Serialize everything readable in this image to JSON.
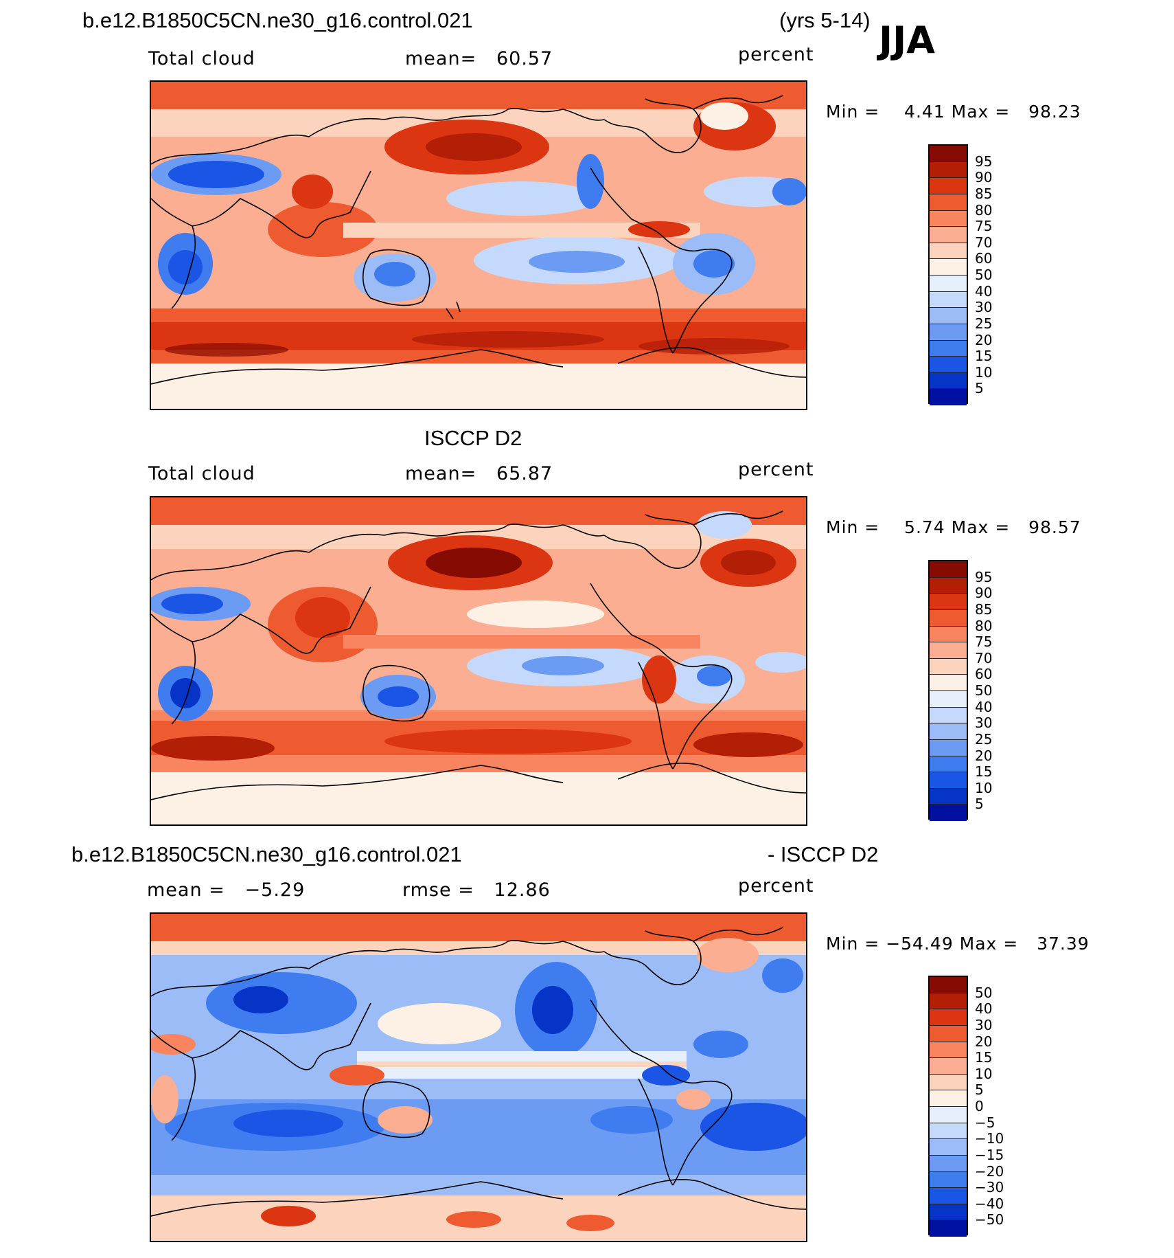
{
  "header": {
    "case_name": "b.e12.B1850C5CN.ne30_g16.control.021",
    "years": "(yrs 5-14)",
    "season": "JJA"
  },
  "panels": [
    {
      "id": "model",
      "title": "",
      "left_label": "Total cloud",
      "mean_text": "mean=   60.57",
      "units": "percent",
      "minmax_text": "Min =    4.41 Max =   98.23",
      "colors": [
        "#000080",
        "#0010a0",
        "#0634c6",
        "#1a55e6",
        "#3f7cf0",
        "#6c9bf4",
        "#9bbcf7",
        "#c4d9fb",
        "#e6f0fd",
        "#fdf0e4",
        "#fcd3bd",
        "#fbae91",
        "#f88560",
        "#ef5b31",
        "#dc3511",
        "#b31e07",
        "#860b02"
      ],
      "colorbar_labels": [
        "95",
        "90",
        "85",
        "80",
        "75",
        "70",
        "60",
        "50",
        "40",
        "30",
        "25",
        "20",
        "15",
        "10",
        "5"
      ]
    },
    {
      "id": "obs",
      "title": "ISCCP D2",
      "left_label": "Total cloud",
      "mean_text": "mean=   65.87",
      "units": "percent",
      "minmax_text": "Min =    5.74 Max =   98.57",
      "colors": [
        "#000080",
        "#0010a0",
        "#0634c6",
        "#1a55e6",
        "#3f7cf0",
        "#6c9bf4",
        "#9bbcf7",
        "#c4d9fb",
        "#e6f0fd",
        "#fdf0e4",
        "#fcd3bd",
        "#fbae91",
        "#f88560",
        "#ef5b31",
        "#dc3511",
        "#b31e07",
        "#860b02"
      ],
      "colorbar_labels": [
        "95",
        "90",
        "85",
        "80",
        "75",
        "70",
        "60",
        "50",
        "40",
        "30",
        "25",
        "20",
        "15",
        "10",
        "5"
      ]
    },
    {
      "id": "diff",
      "title_left": "b.e12.B1850C5CN.ne30_g16.control.021",
      "title_right": "- ISCCP D2",
      "left_label": "mean =   −5.29",
      "mean_text": "rmse =   12.86",
      "units": "percent",
      "minmax_text": "Min = −54.49 Max =   37.39",
      "colors": [
        "#000080",
        "#0010a0",
        "#0634c6",
        "#1a55e6",
        "#3f7cf0",
        "#6c9bf4",
        "#9bbcf7",
        "#c4d9fb",
        "#e6f0fd",
        "#fdf0e4",
        "#fcd3bd",
        "#fbae91",
        "#f88560",
        "#ef5b31",
        "#dc3511",
        "#b31e07",
        "#860b02"
      ],
      "colorbar_labels": [
        "50",
        "40",
        "30",
        "20",
        "15",
        "10",
        "5",
        "0",
        "−5",
        "−10",
        "−15",
        "−20",
        "−30",
        "−40",
        "−50"
      ]
    }
  ]
}
